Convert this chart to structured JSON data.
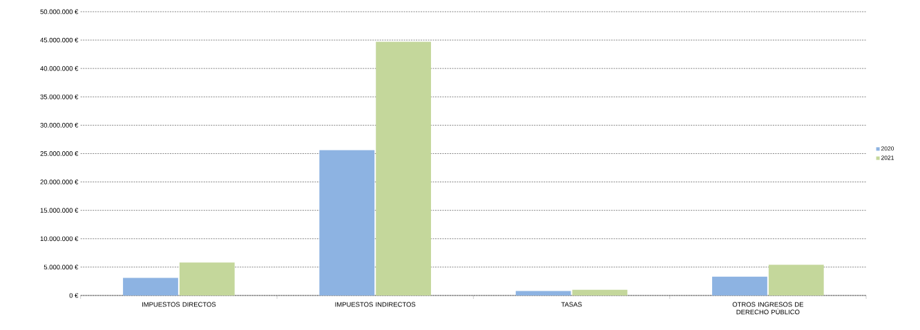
{
  "chart_data": {
    "type": "bar",
    "categories": [
      "IMPUESTOS DIRECTOS",
      "IMPUESTOS INDIRECTOS",
      "TASAS",
      "OTROS INGRESOS DE DERECHO PÚBLICO"
    ],
    "series": [
      {
        "name": "2020",
        "color": "#8db3e2",
        "values": [
          3100000,
          25600000,
          800000,
          3300000
        ]
      },
      {
        "name": "2021",
        "color": "#c4d79b",
        "values": [
          5800000,
          44700000,
          1000000,
          5400000
        ]
      }
    ],
    "ylim": [
      0,
      50000000
    ],
    "yticks": [
      {
        "value": 0,
        "label": "0 €"
      },
      {
        "value": 5000000,
        "label": "5.000.000 €"
      },
      {
        "value": 10000000,
        "label": "10.000.000 €"
      },
      {
        "value": 15000000,
        "label": "15.000.000 €"
      },
      {
        "value": 20000000,
        "label": "20.000.000 €"
      },
      {
        "value": 25000000,
        "label": "25.000.000 €"
      },
      {
        "value": 30000000,
        "label": "30.000.000 €"
      },
      {
        "value": 35000000,
        "label": "35.000.000 €"
      },
      {
        "value": 40000000,
        "label": "40.000.000 €"
      },
      {
        "value": 45000000,
        "label": "45.000.000 €"
      },
      {
        "value": 50000000,
        "label": "50.000.000 €"
      }
    ],
    "grid": "y",
    "legend": "right"
  }
}
